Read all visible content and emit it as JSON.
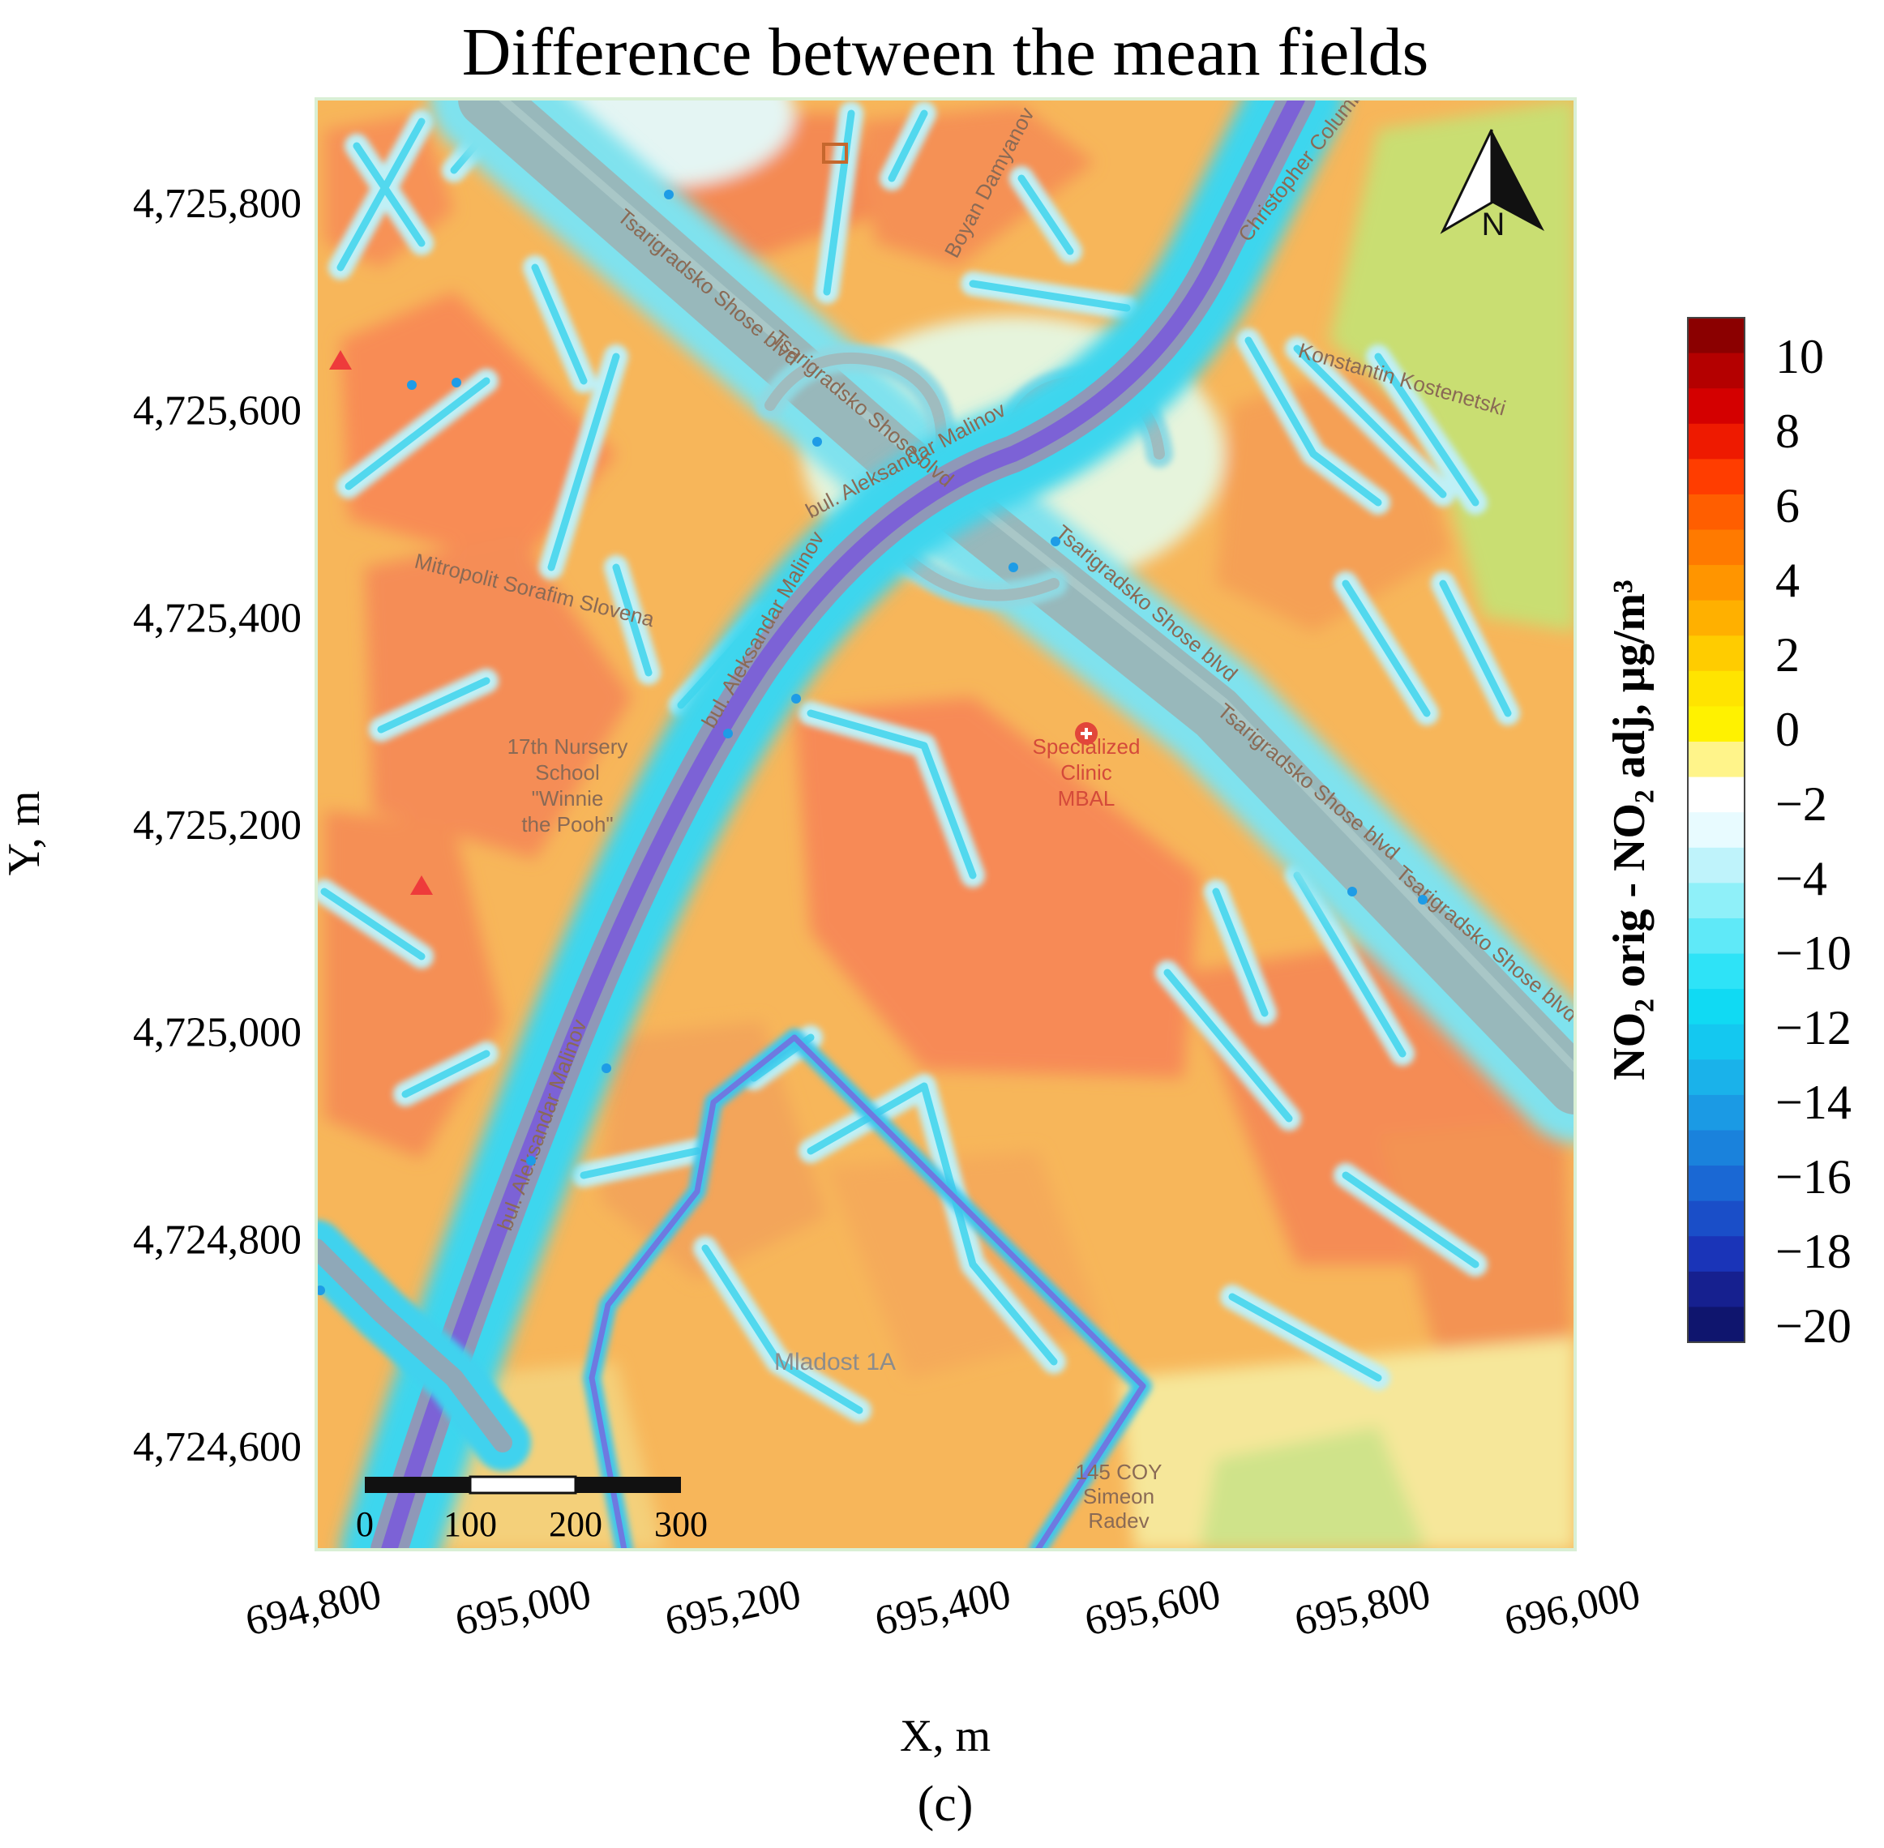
{
  "figure": {
    "title": "Difference between the mean fields",
    "panel_label": "(c)",
    "x_label": "X, m",
    "y_label": "Y, m",
    "x_ticks": [
      {
        "value": 694800,
        "label": "694,800"
      },
      {
        "value": 695000,
        "label": "695,000"
      },
      {
        "value": 695200,
        "label": "695,200"
      },
      {
        "value": 695400,
        "label": "695,400"
      },
      {
        "value": 695600,
        "label": "695,600"
      },
      {
        "value": 695800,
        "label": "695,800"
      },
      {
        "value": 696000,
        "label": "696,000"
      }
    ],
    "y_ticks": [
      {
        "value": 4725800,
        "label": "4,725,800"
      },
      {
        "value": 4725600,
        "label": "4,725,600"
      },
      {
        "value": 4725400,
        "label": "4,725,400"
      },
      {
        "value": 4725200,
        "label": "4,725,200"
      },
      {
        "value": 4725000,
        "label": "4,725,000"
      },
      {
        "value": 4724800,
        "label": "4,724,800"
      },
      {
        "value": 4724600,
        "label": "4,724,600"
      }
    ],
    "extent": {
      "x": [
        694800,
        696000
      ],
      "y": [
        4724500,
        4725900
      ]
    }
  },
  "colorbar": {
    "label": "NO₂ orig - NO₂ adj, µg/m³",
    "tick_labels": [
      "10",
      "8",
      "6",
      "4",
      "2",
      "0",
      "−2",
      "−4",
      "−10",
      "−12",
      "−14",
      "−16",
      "−18",
      "−20"
    ],
    "colors": [
      "#8b0000",
      "#b40000",
      "#d40000",
      "#ee1a00",
      "#ff3d00",
      "#ff5e00",
      "#ff7a00",
      "#ff9500",
      "#ffb000",
      "#ffcc00",
      "#ffe400",
      "#fff200",
      "#fff48a",
      "#ffffff",
      "#e8fbff",
      "#bff3fb",
      "#8ff0f9",
      "#5fe9f8",
      "#2ee3f7",
      "#10daf3",
      "#14c8f0",
      "#1ab2ea",
      "#1b9ae4",
      "#1a82dc",
      "#1a68d4",
      "#1a4ec8",
      "#1a34b8",
      "#16208f",
      "#0f156e"
    ]
  },
  "north_arrow": {
    "label": "N"
  },
  "scale_bar": {
    "labels": [
      "0",
      "100",
      "200",
      "300"
    ]
  },
  "map_labels": {
    "nursery": [
      "17th Nursery",
      "School",
      "\"Winnie",
      "the Pooh\""
    ],
    "hospital": [
      "Specialized",
      "Clinic",
      "MBAL"
    ],
    "district": "Mladost 1A",
    "school": [
      "145 COY",
      "Simeon",
      "Radev"
    ],
    "streets": [
      "Tsarigradsko Shose blvd",
      "Tsarigradsko Shose blvd",
      "Tsarigradsko Shose blvd",
      "Tsarigradsko Shose blvd",
      "Tsarigradsko Shose blvd",
      "bul. Aleksandar Malinov",
      "bul. Aleksandar Malinov",
      "bul. Aleksandar Malinov",
      "Mitropolit Sorafim Slovena",
      "Konstantin Kostenetski",
      "Boyan Damyanov",
      "Christopher Columbus Boulevard"
    ]
  },
  "colors": {
    "background_field": "#f7b65a",
    "hot_field": "#f88c55",
    "road_band": "#3fd9ef",
    "main_road": "#7d6bd6",
    "highway": "#98b8bb",
    "park": "#c8df6f"
  },
  "icons": {
    "north": "north-arrow-icon",
    "hospital": "hospital-icon",
    "pin": "map-pin-icon"
  }
}
